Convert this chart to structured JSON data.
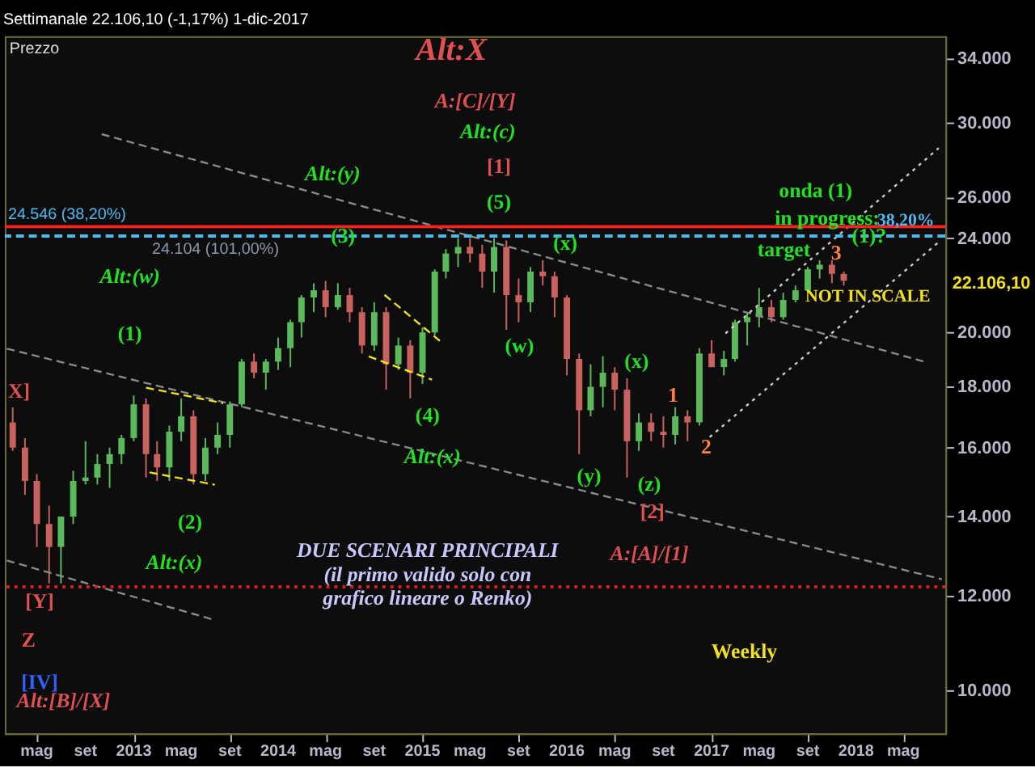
{
  "chart_data": {
    "type": "candlestick",
    "title": "Settimanale 22.106,10 (-1,17%) 1-dic-2017",
    "ylabel": "Prezzo",
    "log": "y",
    "grid": false,
    "xlim": [
      "2012-02-10",
      "2018-08-15"
    ],
    "ylim": [
      9200,
      35500
    ],
    "xticks": [
      {
        "value": "2012-05-01",
        "label": "mag"
      },
      {
        "value": "2012-09-01",
        "label": "set"
      },
      {
        "value": "2013-01-01",
        "label": "2013"
      },
      {
        "value": "2013-05-01",
        "label": "mag"
      },
      {
        "value": "2013-09-01",
        "label": "set"
      },
      {
        "value": "2014-01-01",
        "label": "2014"
      },
      {
        "value": "2014-05-01",
        "label": "mag"
      },
      {
        "value": "2014-09-01",
        "label": "set"
      },
      {
        "value": "2015-01-01",
        "label": "2015"
      },
      {
        "value": "2015-05-01",
        "label": "mag"
      },
      {
        "value": "2015-09-01",
        "label": "set"
      },
      {
        "value": "2016-01-01",
        "label": "2016"
      },
      {
        "value": "2016-05-01",
        "label": "mag"
      },
      {
        "value": "2016-09-01",
        "label": "set"
      },
      {
        "value": "2017-01-01",
        "label": "2017"
      },
      {
        "value": "2017-05-01",
        "label": "mag"
      },
      {
        "value": "2017-09-01",
        "label": "set"
      },
      {
        "value": "2018-01-01",
        "label": "2018"
      },
      {
        "value": "2018-05-01",
        "label": "mag"
      }
    ],
    "yticks": [
      {
        "value": 10000,
        "label": "10.000"
      },
      {
        "value": 12000,
        "label": "12.000"
      },
      {
        "value": 14000,
        "label": "14.000"
      },
      {
        "value": 16000,
        "label": "16.000"
      },
      {
        "value": 18000,
        "label": "18.000"
      },
      {
        "value": 20000,
        "label": "20.000"
      },
      {
        "value": 24000,
        "label": "24.000"
      },
      {
        "value": 26000,
        "label": "26.000"
      },
      {
        "value": 30000,
        "label": "30.000"
      },
      {
        "value": 34000,
        "label": "34.000"
      }
    ],
    "x": [
      "2012-03",
      "2012-04",
      "2012-05",
      "2012-06",
      "2012-07",
      "2012-08",
      "2012-09",
      "2012-10",
      "2012-11",
      "2012-12",
      "2013-01",
      "2013-02",
      "2013-03",
      "2013-04",
      "2013-05",
      "2013-06",
      "2013-07",
      "2013-08",
      "2013-09",
      "2013-10",
      "2013-11",
      "2013-12",
      "2014-01",
      "2014-02",
      "2014-03",
      "2014-04",
      "2014-05",
      "2014-06",
      "2014-07",
      "2014-08",
      "2014-09",
      "2014-10",
      "2014-11",
      "2014-12",
      "2015-01",
      "2015-02",
      "2015-03",
      "2015-04",
      "2015-05",
      "2015-06",
      "2015-07",
      "2015-08",
      "2015-09",
      "2015-10",
      "2015-11",
      "2015-12",
      "2016-01",
      "2016-02",
      "2016-03",
      "2016-04",
      "2016-05",
      "2016-06",
      "2016-07",
      "2016-08",
      "2016-09",
      "2016-10",
      "2016-11",
      "2016-12",
      "2017-01",
      "2017-02",
      "2017-03",
      "2017-04",
      "2017-05",
      "2017-06",
      "2017-07",
      "2017-08",
      "2017-09",
      "2017-10",
      "2017-11",
      "2017-12"
    ],
    "ohlc": [
      [
        16800,
        17300,
        15900,
        16000
      ],
      [
        16000,
        16300,
        14600,
        15000
      ],
      [
        15000,
        15200,
        13200,
        13800
      ],
      [
        13800,
        14300,
        12300,
        13200
      ],
      [
        13200,
        14000,
        12300,
        14000
      ],
      [
        14000,
        15300,
        13800,
        15000
      ],
      [
        15000,
        16200,
        14900,
        15100
      ],
      [
        15100,
        15800,
        14900,
        15500
      ],
      [
        15500,
        16000,
        14800,
        15800
      ],
      [
        15800,
        16400,
        15500,
        16300
      ],
      [
        16300,
        17700,
        16200,
        17400
      ],
      [
        17400,
        17600,
        15100,
        15800
      ],
      [
        15800,
        16200,
        15000,
        15400
      ],
      [
        15400,
        16700,
        15000,
        16500
      ],
      [
        16500,
        17600,
        16200,
        17000
      ],
      [
        17000,
        17200,
        14900,
        15200
      ],
      [
        15200,
        16300,
        15000,
        16000
      ],
      [
        16000,
        16800,
        15800,
        16400
      ],
      [
        16400,
        17500,
        16000,
        17400
      ],
      [
        17400,
        19000,
        17300,
        18900
      ],
      [
        18900,
        19200,
        18300,
        18500
      ],
      [
        18500,
        19000,
        17900,
        18900
      ],
      [
        18900,
        19800,
        18600,
        19400
      ],
      [
        19400,
        20500,
        18700,
        20400
      ],
      [
        20400,
        21500,
        19800,
        21400
      ],
      [
        21400,
        22000,
        20800,
        21700
      ],
      [
        21700,
        22100,
        20600,
        21000
      ],
      [
        21000,
        22000,
        20900,
        21500
      ],
      [
        21500,
        21800,
        20400,
        20800
      ],
      [
        20800,
        21000,
        19200,
        19500
      ],
      [
        19500,
        21200,
        19300,
        20800
      ],
      [
        20800,
        21000,
        17900,
        18800
      ],
      [
        18800,
        19800,
        18600,
        19500
      ],
      [
        19500,
        19700,
        17600,
        18500
      ],
      [
        18500,
        20200,
        18100,
        20000
      ],
      [
        20000,
        22600,
        19900,
        22500
      ],
      [
        22500,
        23500,
        22200,
        23300
      ],
      [
        23300,
        24000,
        22700,
        23600
      ],
      [
        23600,
        24000,
        22900,
        23300
      ],
      [
        23300,
        23700,
        21800,
        22500
      ],
      [
        22500,
        24000,
        21600,
        23600
      ],
      [
        23600,
        23900,
        20100,
        21500
      ],
      [
        21500,
        22200,
        20400,
        21200
      ],
      [
        21200,
        22700,
        20800,
        22500
      ],
      [
        22500,
        23000,
        21900,
        22300
      ],
      [
        22300,
        22500,
        20600,
        21400
      ],
      [
        21400,
        21500,
        18400,
        19000
      ],
      [
        19000,
        19200,
        15800,
        17200
      ],
      [
        17200,
        18800,
        17000,
        18000
      ],
      [
        18000,
        19100,
        17300,
        18500
      ],
      [
        18500,
        18700,
        17200,
        17900
      ],
      [
        17900,
        18300,
        15100,
        16200
      ],
      [
        16200,
        17100,
        15900,
        16800
      ],
      [
        16800,
        17100,
        16200,
        16500
      ],
      [
        16500,
        17000,
        16000,
        16400
      ],
      [
        16400,
        17300,
        16100,
        17000
      ],
      [
        17000,
        17200,
        16200,
        16800
      ],
      [
        16800,
        19400,
        16700,
        19200
      ],
      [
        19200,
        19700,
        18700,
        18700
      ],
      [
        18700,
        19300,
        18400,
        19000
      ],
      [
        19000,
        20500,
        18900,
        20400
      ],
      [
        20400,
        20800,
        19500,
        20600
      ],
      [
        20600,
        21800,
        20200,
        21000
      ],
      [
        21000,
        21300,
        20400,
        20600
      ],
      [
        20600,
        21600,
        20500,
        21300
      ],
      [
        21300,
        21900,
        21200,
        21700
      ],
      [
        21700,
        22700,
        21600,
        22600
      ],
      [
        22600,
        23000,
        22200,
        22800
      ],
      [
        22800,
        23000,
        22000,
        22400
      ],
      [
        22400,
        22500,
        21900,
        22106.1
      ]
    ],
    "colors": [
      "#c9625f",
      "#c9625f",
      "#c9625f",
      "#c9625f",
      "#5cb85c",
      "#5cb85c",
      "#5cb85c",
      "#5cb85c",
      "#5cb85c",
      "#5cb85c",
      "#5cb85c",
      "#c9625f",
      "#c9625f",
      "#5cb85c",
      "#5cb85c",
      "#c9625f",
      "#5cb85c",
      "#5cb85c",
      "#5cb85c",
      "#5cb85c",
      "#c9625f",
      "#5cb85c",
      "#5cb85c",
      "#5cb85c",
      "#5cb85c",
      "#5cb85c",
      "#c9625f",
      "#5cb85c",
      "#c9625f",
      "#c9625f",
      "#5cb85c",
      "#c9625f",
      "#5cb85c",
      "#c9625f",
      "#5cb85c",
      "#5cb85c",
      "#5cb85c",
      "#5cb85c",
      "#c9625f",
      "#c9625f",
      "#5cb85c",
      "#c9625f",
      "#c9625f",
      "#5cb85c",
      "#c9625f",
      "#c9625f",
      "#c9625f",
      "#c9625f",
      "#5cb85c",
      "#5cb85c",
      "#c9625f",
      "#c9625f",
      "#5cb85c",
      "#c9625f",
      "#c9625f",
      "#5cb85c",
      "#c9625f",
      "#5cb85c",
      "#c9625f",
      "#5cb85c",
      "#5cb85c",
      "#5cb85c",
      "#5cb85c",
      "#c9625f",
      "#5cb85c",
      "#5cb85c",
      "#5cb85c",
      "#5cb85c",
      "#c9625f",
      "#c9625f"
    ],
    "series": [
      {
        "type": "line",
        "color": "#8a8a8a",
        "line_style": "dashed",
        "x": [
          "2012-10-12",
          "2018-06-20"
        ],
        "values": [
          29360,
          18910
        ]
      },
      {
        "type": "line",
        "color": "#8a8a8a",
        "line_style": "dashed",
        "x": [
          "2012-02-15",
          "2018-08-06"
        ],
        "values": [
          19380,
          12400
        ]
      },
      {
        "type": "line",
        "color": "#8a8a8a",
        "line_style": "dashed",
        "x": [
          "2012-02-15",
          "2013-07-16"
        ],
        "values": [
          12860,
          11480
        ]
      },
      {
        "type": "line",
        "color": "#cccccc",
        "line_style": "dotted",
        "x": [
          "2017-02-05",
          "2018-07-29"
        ],
        "values": [
          19960,
          28580
        ]
      },
      {
        "type": "line",
        "color": "#cccccc",
        "line_style": "dotted",
        "x": [
          "2016-12-27",
          "2018-07-29"
        ],
        "values": [
          16330,
          23820
        ]
      },
      {
        "type": "line",
        "color": "#f0e020",
        "line_style": "dashed",
        "x": [
          "2013-02-01",
          "2013-08-15"
        ],
        "values": [
          17970,
          17440
        ]
      },
      {
        "type": "line",
        "color": "#f0e020",
        "line_style": "dashed",
        "x": [
          "2013-02-10",
          "2013-07-25"
        ],
        "values": [
          15250,
          14890
        ]
      },
      {
        "type": "line",
        "color": "#f0e020",
        "line_style": "dashed",
        "x": [
          "2014-09-27",
          "2015-02-14"
        ],
        "values": [
          21510,
          19670
        ]
      },
      {
        "type": "line",
        "color": "#f0e020",
        "line_style": "dashed",
        "x": [
          "2014-08-18",
          "2015-01-25"
        ],
        "values": [
          19090,
          18250
        ]
      }
    ],
    "ref_lines": [
      {
        "axis": "y",
        "value": 24546,
        "label": "24.546 (38,20%)",
        "color": "#ff2020",
        "line_style": "solid"
      },
      {
        "axis": "y",
        "value": 24104,
        "label": "24.104 (101,00%)",
        "color": "#4fb8f0",
        "line_style": "dashed"
      },
      {
        "axis": "y",
        "value": 12220,
        "color": "#d02020",
        "line_style": "dotted"
      }
    ],
    "annotations": [
      "Alt:X",
      "A:[C]/[Y]",
      "Alt:(c)",
      "Alt:(y)",
      "[1]",
      "(5)",
      {
        "text": "(3)",
        "x": "2014-06-14",
        "y": 24110
      },
      "Alt:(w)",
      "(1)",
      "X]",
      "(2)",
      "Alt:(x)",
      "[Y]",
      "Z",
      "[IV]",
      "Alt:[B]/[X]",
      "(4)",
      {
        "text": "Alt:(x)",
        "x": "2015-01-26",
        "y": 15710
      },
      "(w)",
      {
        "text": "(x)",
        "x": "2015-12-28",
        "y": 23760
      },
      "(x)",
      "(y)",
      "(z)",
      {
        "text": "[2]",
        "x": "2016-08-04",
        "y": 14140
      },
      "1",
      "2",
      "3",
      {
        "text": "(1)?",
        "x": "2018-02-03",
        "y": 24110
      },
      "A:[A]/[1]",
      "onda (1)",
      {
        "text": "in progress:",
        "x": "2017-10-20",
        "y": 24950
      },
      "target",
      "NOT IN SCALE",
      "22.106,10",
      "38,20%",
      "DUE SCENARI PRINCIPALI\n(il primo valido solo con\ngrafico lineare o Renko)",
      "Weekly"
    ]
  }
}
